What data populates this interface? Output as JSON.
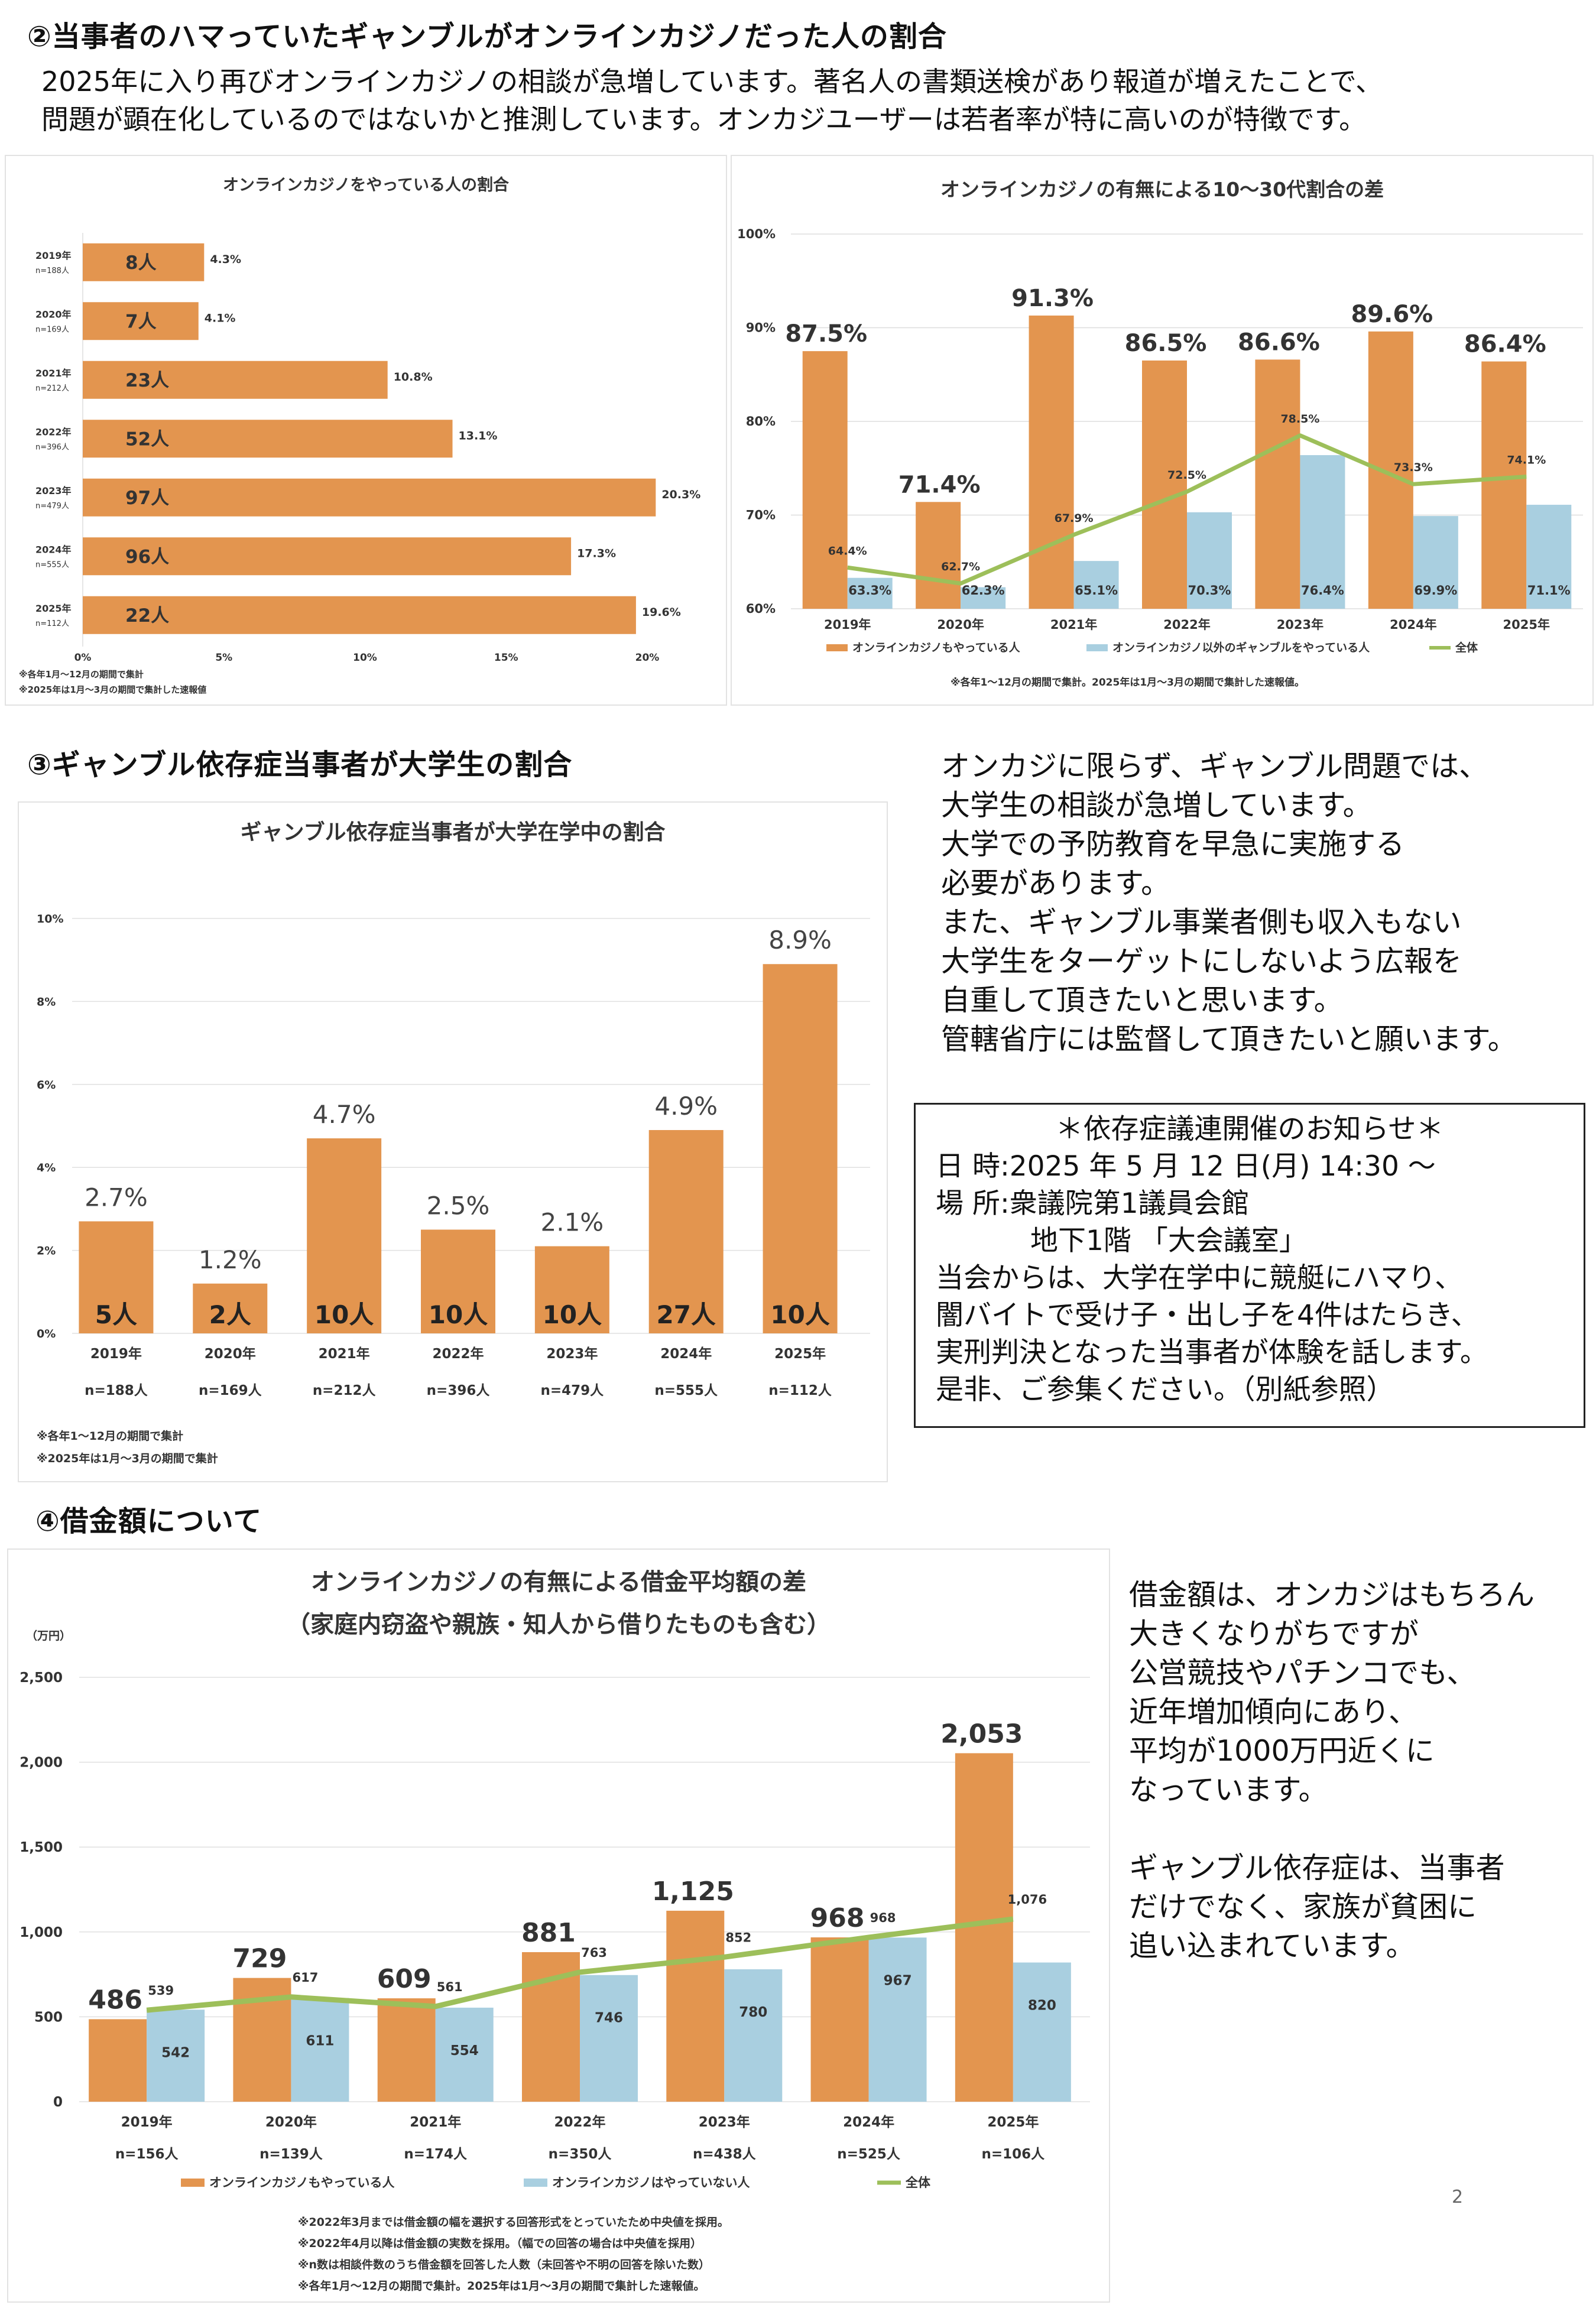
{
  "section2": {
    "title": "②当事者のハマっていたギャンブルがオンラインカジノだった人の割合",
    "paragraph": [
      "2025年に入り再びオンラインカジノの相談が急増しています。著名人の書類送検があり報道が増えたことで、",
      "問題が顕在化しているのではないかと推測しています。オンカジユーザーは若者率が特に高いのが特徴です。"
    ]
  },
  "section3": {
    "title": "③ギャンブル依存症当事者が大学生の割合",
    "side_text": [
      "オンカジに限らず、ギャンブル問題では、",
      "大学生の相談が急増しています。",
      "大学での予防教育を早急に実施する",
      "必要があります。",
      "また、ギャンブル事業者側も収入もない",
      "大学生をターゲットにしないよう広報を",
      "自重して頂きたいと思います。",
      "管轄省庁には監督して頂きたいと願います。"
    ],
    "notice": {
      "heading": "＊依存症議連開催のお知らせ＊",
      "line1": "日 時:2025 年 5 月 12 日(月) 14:30 ～",
      "line2": "場 所:衆議院第1議員会館",
      "line3": "地下1階 「大会議室」",
      "line4": "当会からは、大学在学中に競艇にハマり、",
      "line5": "闇バイトで受け子・出し子を4件はたらき、",
      "line6": "実刑判決となった当事者が体験を話します。",
      "line7": "是非、ご参集ください。（別紙参照）"
    }
  },
  "section4": {
    "title": "④借金額について",
    "side_text": [
      "借金額は、オンカジはもちろん",
      "大きくなりがちですが",
      "公営競技やパチンコでも、",
      "近年増加傾向にあり、",
      "平均が1000万円近くに",
      "なっています。",
      "",
      "ギャンブル依存症は、当事者",
      "だけでなく、家族が貧困に",
      "追い込まれています。"
    ]
  },
  "page_number": "2",
  "colors": {
    "orange": "#e3954f",
    "blue": "#a9cfe0",
    "green": "#9dbf5a"
  },
  "chart_data": [
    {
      "id": "chart1",
      "type": "bar",
      "orientation": "horizontal",
      "title": "オンラインカジノをやっている人の割合",
      "categories": [
        "2019年",
        "2020年",
        "2021年",
        "2022年",
        "2023年",
        "2024年",
        "2025年"
      ],
      "n_labels": [
        "n=188人",
        "n=169人",
        "n=212人",
        "n=396人",
        "n=479人",
        "n=555人",
        "n=112人"
      ],
      "values": [
        4.3,
        4.1,
        10.8,
        13.1,
        20.3,
        17.3,
        19.6
      ],
      "value_labels": [
        "4.3%",
        "4.1%",
        "10.8%",
        "13.1%",
        "20.3%",
        "17.3%",
        "19.6%"
      ],
      "bar_labels": [
        "8人",
        "7人",
        "23人",
        "52人",
        "97人",
        "96人",
        "22人"
      ],
      "xlim": [
        0,
        20
      ],
      "xticks": [
        "0%",
        "5%",
        "10%",
        "15%",
        "20%"
      ],
      "notes": [
        "※各年1月～12月の期間で集計",
        "※2025年は1月～3月の期間で集計した速報値"
      ]
    },
    {
      "id": "chart2",
      "type": "bar",
      "title": "オンラインカジノの有無による10～30代割合の差",
      "categories": [
        "2019年",
        "2020年",
        "2021年",
        "2022年",
        "2023年",
        "2024年",
        "2025年"
      ],
      "ylim": [
        60,
        100
      ],
      "yticks": [
        "60%",
        "70%",
        "80%",
        "90%",
        "100%"
      ],
      "series": [
        {
          "name": "オンラインカジノもやっている人",
          "type": "bar",
          "values": [
            87.5,
            71.4,
            91.3,
            86.5,
            86.6,
            89.6,
            86.4
          ],
          "labels": [
            "87.5%",
            "71.4%",
            "91.3%",
            "86.5%",
            "86.6%",
            "89.6%",
            "86.4%"
          ]
        },
        {
          "name": "オンラインカジノ以外のギャンブルをやっている人",
          "type": "bar",
          "values": [
            63.3,
            62.3,
            65.1,
            70.3,
            76.4,
            69.9,
            71.1
          ],
          "labels": [
            "63.3%",
            "62.3%",
            "65.1%",
            "70.3%",
            "76.4%",
            "69.9%",
            "71.1%"
          ]
        },
        {
          "name": "全体",
          "type": "line",
          "values": [
            64.4,
            62.7,
            67.9,
            72.5,
            78.5,
            73.3,
            74.1
          ],
          "labels": [
            "64.4%",
            "62.7%",
            "67.9%",
            "72.5%",
            "78.5%",
            "73.3%",
            "74.1%"
          ]
        }
      ],
      "notes": [
        "※各年1～12月の期間で集計。2025年は1月～3月の期間で集計した速報値。"
      ]
    },
    {
      "id": "chart3",
      "type": "bar",
      "title": "ギャンブル依存症当事者が大学在学中の割合",
      "categories": [
        "2019年",
        "2020年",
        "2021年",
        "2022年",
        "2023年",
        "2024年",
        "2025年"
      ],
      "n_labels": [
        "n=188人",
        "n=169人",
        "n=212人",
        "n=396人",
        "n=479人",
        "n=555人",
        "n=112人"
      ],
      "values": [
        2.7,
        1.2,
        4.7,
        2.5,
        2.1,
        4.9,
        8.9
      ],
      "value_labels": [
        "2.7%",
        "1.2%",
        "4.7%",
        "2.5%",
        "2.1%",
        "4.9%",
        "8.9%"
      ],
      "bar_labels": [
        "5人",
        "2人",
        "10人",
        "10人",
        "10人",
        "27人",
        "10人"
      ],
      "ylim": [
        0,
        10
      ],
      "yticks": [
        "0%",
        "2%",
        "4%",
        "6%",
        "8%",
        "10%"
      ],
      "notes": [
        "※各年1～12月の期間で集計",
        "※2025年は1月～3月の期間で集計"
      ]
    },
    {
      "id": "chart4",
      "type": "bar",
      "title": "オンラインカジノの有無による借金平均額の差",
      "subtitle": "（家庭内窃盗や親族・知人から借りたものも含む）",
      "ylabel": "（万円）",
      "categories": [
        "2019年",
        "2020年",
        "2021年",
        "2022年",
        "2023年",
        "2024年",
        "2025年"
      ],
      "n_labels": [
        "n=156人",
        "n=139人",
        "n=174人",
        "n=350人",
        "n=438人",
        "n=525人",
        "n=106人"
      ],
      "ylim": [
        0,
        2500
      ],
      "yticks": [
        "0",
        "500",
        "1,000",
        "1,500",
        "2,000",
        "2,500"
      ],
      "series": [
        {
          "name": "オンラインカジノもやっている人",
          "type": "bar",
          "values": [
            486,
            729,
            609,
            881,
            1125,
            968,
            2053
          ],
          "labels": [
            "486",
            "729",
            "609",
            "881",
            "1,125",
            "968",
            "2,053"
          ]
        },
        {
          "name": "オンラインカジノはやっていない人",
          "type": "bar",
          "values": [
            542,
            611,
            554,
            746,
            780,
            967,
            820
          ],
          "labels": [
            "542",
            "611",
            "554",
            "746",
            "780",
            "967",
            "820"
          ]
        },
        {
          "name": "全体",
          "type": "line",
          "values": [
            539,
            617,
            561,
            763,
            852,
            968,
            1076
          ],
          "labels": [
            "539",
            "617",
            "561",
            "763",
            "852",
            "968",
            "1,076"
          ]
        }
      ],
      "notes": [
        "※2022年3月までは借金額の幅を選択する回答形式をとっていたため中央値を採用。",
        "※2022年4月以降は借金額の実数を採用。（幅での回答の場合は中央値を採用）",
        "※n数は相談件数のうち借金額を回答した人数（未回答や不明の回答を除いた数）",
        "※各年1月～12月の期間で集計。2025年は1月～3月の期間で集計した速報値。"
      ]
    }
  ]
}
